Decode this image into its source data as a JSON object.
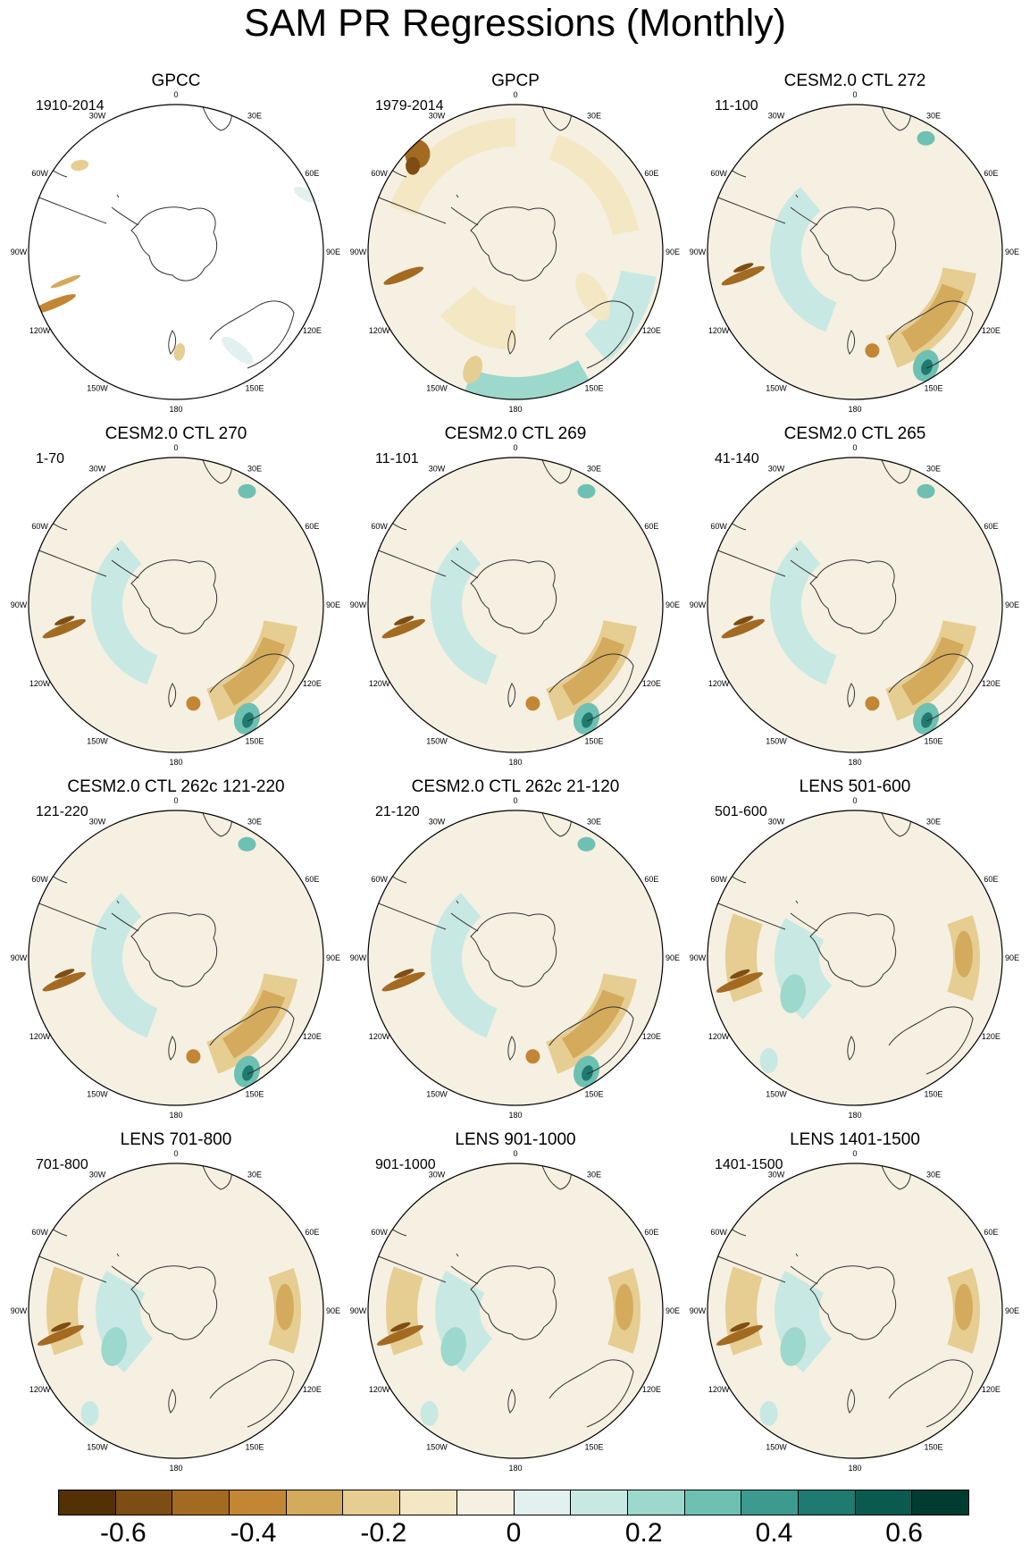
{
  "title": "SAM PR Regressions (Monthly)",
  "lon_labels": [
    "0",
    "30E",
    "60E",
    "90E",
    "120E",
    "150E",
    "180",
    "150W",
    "120W",
    "90W",
    "60W",
    "30W"
  ],
  "panels": [
    {
      "title": "GPCC",
      "period": "1910-2014",
      "pattern": "gpcc"
    },
    {
      "title": "GPCP",
      "period": "1979-2014",
      "pattern": "gpcp"
    },
    {
      "title": "CESM2.0 CTL 272",
      "period": "11-100",
      "pattern": "cesm"
    },
    {
      "title": "CESM2.0 CTL 270",
      "period": "1-70",
      "pattern": "cesm"
    },
    {
      "title": "CESM2.0 CTL 269",
      "period": "11-101",
      "pattern": "cesm"
    },
    {
      "title": "CESM2.0 CTL 265",
      "period": "41-140",
      "pattern": "cesm"
    },
    {
      "title": "CESM2.0 CTL 262c 121-220",
      "period": "121-220",
      "pattern": "cesm"
    },
    {
      "title": "CESM2.0 CTL 262c 21-120",
      "period": "21-120",
      "pattern": "cesm"
    },
    {
      "title": "LENS 501-600",
      "period": "501-600",
      "pattern": "lens"
    },
    {
      "title": "LENS 701-800",
      "period": "701-800",
      "pattern": "lens"
    },
    {
      "title": "LENS 901-1000",
      "period": "901-1000",
      "pattern": "lens"
    },
    {
      "title": "LENS 1401-1500",
      "period": "1401-1500",
      "pattern": "lens"
    }
  ],
  "colorbar": {
    "colors": [
      "#543005",
      "#7d4d13",
      "#a36a22",
      "#c28634",
      "#d4aa5c",
      "#e6cd92",
      "#f4e7c4",
      "#f5f0e1",
      "#e2f0ef",
      "#c8e9e3",
      "#9dd8cc",
      "#6ec0b3",
      "#3d9a8e",
      "#1f7a6f",
      "#0b5a50",
      "#013c31"
    ],
    "tick_labels": [
      "-0.6",
      "-0.4",
      "-0.2",
      "0",
      "0.2",
      "0.4",
      "0.6"
    ],
    "tick_values": [
      -0.6,
      -0.4,
      -0.2,
      0,
      0.2,
      0.4,
      0.6
    ],
    "range": [
      -0.7,
      0.7
    ]
  }
}
